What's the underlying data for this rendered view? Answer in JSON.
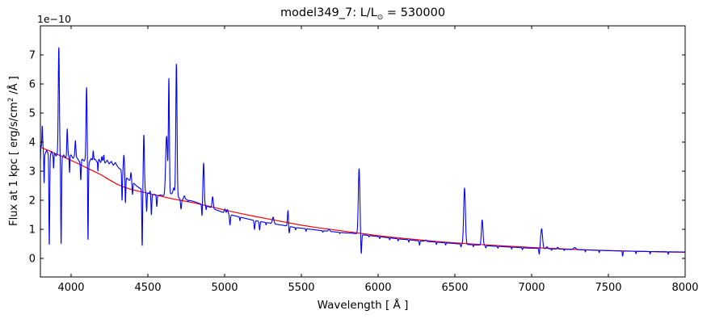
{
  "figure": {
    "title": {
      "prefix": "model349_7: L/L",
      "subscript": "⊙",
      "suffix": " = 530000"
    },
    "y_offset_label": "1e−10",
    "x_axis_label": "Wavelength [ Å ]",
    "y_axis_label": {
      "prefix": "Flux at 1 kpc [ erg/s/cm",
      "sup": "2",
      "suffix": " /Å ]"
    }
  },
  "chart_data": {
    "type": "line",
    "title": "model349_7: L/L⊙ = 530000",
    "xlabel": "Wavelength [ Å ]",
    "ylabel": "Flux at 1 kpc [ erg/s/cm²/Å ]",
    "y_offset_factor": "1e-10",
    "grid": false,
    "legend": null,
    "xlim": [
      3800,
      8000
    ],
    "ylim": [
      -0.64,
      8.0
    ],
    "xticks": [
      4000,
      4500,
      5000,
      5500,
      6000,
      6500,
      7000,
      7500,
      8000
    ],
    "yticks": [
      0,
      1,
      2,
      3,
      4,
      5,
      6,
      7
    ],
    "series": [
      {
        "name": "continuum-fit",
        "color": "#ff0000",
        "points": [
          [
            3800,
            3.82
          ],
          [
            3850,
            3.72
          ],
          [
            3900,
            3.6
          ],
          [
            3950,
            3.49
          ],
          [
            4000,
            3.37
          ],
          [
            4050,
            3.25
          ],
          [
            4100,
            3.12
          ],
          [
            4150,
            2.99
          ],
          [
            4200,
            2.86
          ],
          [
            4250,
            2.7
          ],
          [
            4300,
            2.55
          ],
          [
            4350,
            2.44
          ],
          [
            4400,
            2.36
          ],
          [
            4450,
            2.3
          ],
          [
            4500,
            2.24
          ],
          [
            4550,
            2.18
          ],
          [
            4600,
            2.12
          ],
          [
            4650,
            2.06
          ],
          [
            4700,
            2.01
          ],
          [
            4750,
            1.96
          ],
          [
            4800,
            1.91
          ],
          [
            4850,
            1.85
          ],
          [
            4900,
            1.79
          ],
          [
            4950,
            1.73
          ],
          [
            5000,
            1.66
          ],
          [
            5100,
            1.55
          ],
          [
            5200,
            1.44
          ],
          [
            5300,
            1.34
          ],
          [
            5400,
            1.24
          ],
          [
            5500,
            1.14
          ],
          [
            5600,
            1.06
          ],
          [
            5700,
            0.99
          ],
          [
            5800,
            0.92
          ],
          [
            5900,
            0.85
          ],
          [
            6000,
            0.78
          ],
          [
            6100,
            0.72
          ],
          [
            6200,
            0.67
          ],
          [
            6300,
            0.62
          ],
          [
            6400,
            0.575
          ],
          [
            6500,
            0.535
          ],
          [
            6600,
            0.5
          ],
          [
            6700,
            0.465
          ],
          [
            6800,
            0.435
          ],
          [
            6900,
            0.405
          ],
          [
            7000,
            0.375
          ],
          [
            7100,
            0.35
          ],
          [
            7250,
            0.315
          ],
          [
            7400,
            0.285
          ],
          [
            7550,
            0.26
          ],
          [
            7700,
            0.24
          ],
          [
            7850,
            0.222
          ],
          [
            8000,
            0.21
          ]
        ]
      },
      {
        "name": "model-spectrum",
        "color": "#0000ff",
        "base": [
          [
            3800,
            3.35
          ],
          [
            3803,
            3.88
          ],
          [
            3810,
            3.72
          ],
          [
            3820,
            3.78
          ],
          [
            3830,
            3.58
          ],
          [
            3840,
            3.72
          ],
          [
            3850,
            3.62
          ],
          [
            3862,
            3.55
          ],
          [
            3872,
            3.68
          ],
          [
            3882,
            3.55
          ],
          [
            3892,
            3.62
          ],
          [
            3902,
            3.52
          ],
          [
            3912,
            3.6
          ],
          [
            3928,
            3.5
          ],
          [
            3940,
            3.48
          ],
          [
            3952,
            3.56
          ],
          [
            3965,
            3.45
          ],
          [
            3985,
            3.52
          ],
          [
            4000,
            3.56
          ],
          [
            4012,
            3.44
          ],
          [
            4024,
            3.52
          ],
          [
            4040,
            3.45
          ],
          [
            4055,
            3.32
          ],
          [
            4070,
            3.42
          ],
          [
            4085,
            3.35
          ],
          [
            4095,
            3.42
          ],
          [
            4118,
            3.3
          ],
          [
            4130,
            3.44
          ],
          [
            4142,
            3.34
          ],
          [
            4155,
            3.42
          ],
          [
            4168,
            3.32
          ],
          [
            4180,
            3.42
          ],
          [
            4192,
            3.3
          ],
          [
            4205,
            3.36
          ],
          [
            4222,
            3.28
          ],
          [
            4235,
            3.38
          ],
          [
            4248,
            3.25
          ],
          [
            4262,
            3.34
          ],
          [
            4275,
            3.2
          ],
          [
            4288,
            3.3
          ],
          [
            4300,
            3.18
          ],
          [
            4312,
            3.1
          ],
          [
            4325,
            3.05
          ],
          [
            4340,
            2.95
          ],
          [
            4360,
            2.78
          ],
          [
            4375,
            2.7
          ],
          [
            4390,
            2.66
          ],
          [
            4405,
            2.6
          ],
          [
            4425,
            2.5
          ],
          [
            4445,
            2.42
          ],
          [
            4465,
            2.38
          ],
          [
            4485,
            2.3
          ],
          [
            4505,
            2.24
          ],
          [
            4525,
            2.18
          ],
          [
            4545,
            2.2
          ],
          [
            4565,
            2.16
          ],
          [
            4585,
            2.18
          ],
          [
            4605,
            2.15
          ],
          [
            4625,
            2.18
          ],
          [
            4650,
            2.22
          ],
          [
            4672,
            2.25
          ],
          [
            4695,
            2.12
          ],
          [
            4718,
            2.0
          ],
          [
            4740,
            2.05
          ],
          [
            4765,
            2.0
          ],
          [
            4790,
            1.97
          ],
          [
            4815,
            1.93
          ],
          [
            4840,
            1.88
          ],
          [
            4865,
            1.83
          ],
          [
            4890,
            1.79
          ],
          [
            4915,
            1.74
          ],
          [
            4940,
            1.68
          ],
          [
            4965,
            1.63
          ],
          [
            4990,
            1.58
          ],
          [
            5015,
            1.54
          ],
          [
            5040,
            1.5
          ],
          [
            5070,
            1.46
          ],
          [
            5100,
            1.42
          ],
          [
            5140,
            1.37
          ],
          [
            5180,
            1.32
          ],
          [
            5220,
            1.28
          ],
          [
            5260,
            1.24
          ],
          [
            5300,
            1.21
          ],
          [
            5340,
            1.17
          ],
          [
            5380,
            1.14
          ],
          [
            5420,
            1.1
          ],
          [
            5460,
            1.06
          ],
          [
            5500,
            1.04
          ],
          [
            5540,
            1.01
          ],
          [
            5580,
            0.99
          ],
          [
            5620,
            0.96
          ],
          [
            5660,
            0.94
          ],
          [
            5700,
            0.92
          ],
          [
            5740,
            0.9
          ],
          [
            5780,
            0.88
          ],
          [
            5820,
            0.87
          ],
          [
            5860,
            0.85
          ],
          [
            5900,
            0.81
          ],
          [
            5950,
            0.78
          ],
          [
            6000,
            0.75
          ],
          [
            6050,
            0.72
          ],
          [
            6100,
            0.69
          ],
          [
            6150,
            0.66
          ],
          [
            6200,
            0.64
          ],
          [
            6250,
            0.61
          ],
          [
            6300,
            0.59
          ],
          [
            6350,
            0.57
          ],
          [
            6400,
            0.55
          ],
          [
            6450,
            0.53
          ],
          [
            6500,
            0.51
          ],
          [
            6550,
            0.49
          ],
          [
            6600,
            0.47
          ],
          [
            6650,
            0.46
          ],
          [
            6700,
            0.44
          ],
          [
            6750,
            0.42
          ],
          [
            6800,
            0.41
          ],
          [
            6850,
            0.39
          ],
          [
            6900,
            0.38
          ],
          [
            6950,
            0.36
          ],
          [
            7000,
            0.35
          ],
          [
            7060,
            0.34
          ],
          [
            7120,
            0.33
          ],
          [
            7180,
            0.32
          ],
          [
            7240,
            0.31
          ],
          [
            7300,
            0.3
          ],
          [
            7360,
            0.29
          ],
          [
            7420,
            0.28
          ],
          [
            7480,
            0.27
          ],
          [
            7540,
            0.262
          ],
          [
            7600,
            0.255
          ],
          [
            7660,
            0.248
          ],
          [
            7720,
            0.242
          ],
          [
            7780,
            0.236
          ],
          [
            7840,
            0.23
          ],
          [
            7900,
            0.226
          ],
          [
            7950,
            0.223
          ],
          [
            8000,
            0.22
          ]
        ],
        "peaks": [
          [
            3812,
            4.55,
            2.5
          ],
          [
            3920,
            7.25,
            3.5
          ],
          [
            3975,
            4.45,
            3
          ],
          [
            4028,
            4.05,
            3
          ],
          [
            4101,
            5.88,
            3.5
          ],
          [
            4144,
            3.7,
            2.5
          ],
          [
            4200,
            3.5,
            2.5
          ],
          [
            4213,
            3.55,
            2.5
          ],
          [
            4344,
            3.55,
            3.5
          ],
          [
            4390,
            2.95,
            3
          ],
          [
            4474,
            4.25,
            3.5
          ],
          [
            4515,
            2.32,
            2.5
          ],
          [
            4622,
            4.2,
            6
          ],
          [
            4637,
            6.1,
            3.2
          ],
          [
            4668,
            2.42,
            4
          ],
          [
            4686,
            6.7,
            4
          ],
          [
            4737,
            2.15,
            4
          ],
          [
            4863,
            3.28,
            4
          ],
          [
            4922,
            2.12,
            4
          ],
          [
            5002,
            1.7,
            4
          ],
          [
            5018,
            1.68,
            4
          ],
          [
            5316,
            1.42,
            5
          ],
          [
            5413,
            1.66,
            3.5
          ],
          [
            5680,
            1.0,
            5
          ],
          [
            5876,
            3.08,
            5
          ],
          [
            6310,
            0.63,
            5
          ],
          [
            6563,
            2.42,
            5.5
          ],
          [
            6678,
            1.32,
            5
          ],
          [
            7065,
            1.02,
            6
          ],
          [
            7100,
            0.4,
            4
          ],
          [
            7170,
            0.38,
            4
          ],
          [
            7281,
            0.37,
            8
          ]
        ],
        "dips": [
          [
            3824,
            2.6,
            2
          ],
          [
            3858,
            0.45,
            2.5
          ],
          [
            3886,
            3.1,
            2
          ],
          [
            3935,
            0.5,
            2.5
          ],
          [
            3990,
            2.95,
            2
          ],
          [
            4063,
            2.7,
            2.5
          ],
          [
            4110,
            0.55,
            2.5
          ],
          [
            4175,
            3.0,
            2
          ],
          [
            4332,
            2.0,
            2.5
          ],
          [
            4354,
            1.9,
            2.5
          ],
          [
            4400,
            2.2,
            2.5
          ],
          [
            4463,
            0.42,
            2.5
          ],
          [
            4492,
            1.62,
            2.5
          ],
          [
            4523,
            1.5,
            2.5
          ],
          [
            4558,
            1.78,
            2.5
          ],
          [
            4716,
            1.7,
            3
          ],
          [
            4762,
            1.95,
            2
          ],
          [
            4853,
            1.42,
            2.5
          ],
          [
            4880,
            1.68,
            2
          ],
          [
            5035,
            1.15,
            3
          ],
          [
            5100,
            1.3,
            2
          ],
          [
            5195,
            1.0,
            3
          ],
          [
            5228,
            0.98,
            3
          ],
          [
            5270,
            1.15,
            2
          ],
          [
            5420,
            0.82,
            3
          ],
          [
            5462,
            0.98,
            2
          ],
          [
            5530,
            0.93,
            2
          ],
          [
            5640,
            0.9,
            2
          ],
          [
            5750,
            0.85,
            2
          ],
          [
            5890,
            0.13,
            3
          ],
          [
            5940,
            0.74,
            2
          ],
          [
            6010,
            0.68,
            2
          ],
          [
            6075,
            0.64,
            2
          ],
          [
            6130,
            0.6,
            2
          ],
          [
            6200,
            0.56,
            2
          ],
          [
            6270,
            0.45,
            2.5
          ],
          [
            6380,
            0.48,
            2
          ],
          [
            6440,
            0.46,
            2
          ],
          [
            6540,
            0.4,
            2.5
          ],
          [
            6620,
            0.4,
            2
          ],
          [
            6702,
            0.36,
            2.5
          ],
          [
            6780,
            0.35,
            2
          ],
          [
            6870,
            0.32,
            2
          ],
          [
            6940,
            0.3,
            2
          ],
          [
            7050,
            0.12,
            3
          ],
          [
            7130,
            0.28,
            2
          ],
          [
            7213,
            0.27,
            2
          ],
          [
            7350,
            0.22,
            2
          ],
          [
            7440,
            0.2,
            2
          ],
          [
            7593,
            0.08,
            2.5
          ],
          [
            7680,
            0.16,
            2
          ],
          [
            7772,
            0.15,
            2
          ],
          [
            7890,
            0.14,
            2
          ]
        ]
      }
    ]
  }
}
